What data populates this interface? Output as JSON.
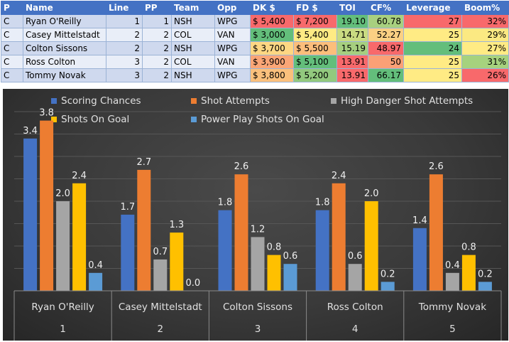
{
  "table": {
    "headers": [
      "P",
      "Name",
      "Line",
      "PP",
      "Team",
      "Opp",
      "DK $",
      "FD $",
      "TOI",
      "CF%",
      "Leverage",
      "Boom%"
    ],
    "rows": [
      [
        "C",
        "Ryan O'Reilly",
        "1",
        "1",
        "NSH",
        "WPG",
        "$ 5,400",
        "$ 7,200",
        "19.10",
        "60.78",
        "27",
        "32%"
      ],
      [
        "C",
        "Casey Mittelstadt",
        "2",
        "2",
        "COL",
        "VAN",
        "$ 3,000",
        "$ 5,400",
        "14.71",
        "52.27",
        "25",
        "29%"
      ],
      [
        "C",
        "Colton Sissons",
        "2",
        "2",
        "NSH",
        "WPG",
        "$ 3,700",
        "$ 5,500",
        "15.19",
        "48.97",
        "24",
        "27%"
      ],
      [
        "C",
        "Ross Colton",
        "3",
        "2",
        "COL",
        "VAN",
        "$ 3,900",
        "$ 5,100",
        "13.91",
        "50",
        "25",
        "31%"
      ],
      [
        "C",
        "Tommy Novak",
        "3",
        "2",
        "NSH",
        "WPG",
        "$ 3,800",
        "$ 5,200",
        "13.91",
        "66.17",
        "25",
        "26%"
      ]
    ],
    "cell_colors": [
      [
        "",
        "",
        "",
        "",
        "",
        "",
        "#f8696b",
        "#f8696b",
        "#63be7b",
        "#a8d07f",
        "#f8696b",
        "#f8696b"
      ],
      [
        "",
        "",
        "",
        "",
        "",
        "",
        "#63be7b",
        "#ffeb84",
        "#c9db81",
        "#fbd083",
        "#ffeb84",
        "#fbe982"
      ],
      [
        "",
        "",
        "",
        "",
        "",
        "",
        "#fdd783",
        "#fcbe7b",
        "#a6cf7f",
        "#f8696b",
        "#63be7b",
        "#ffeb84"
      ],
      [
        "",
        "",
        "",
        "",
        "",
        "",
        "#fba677",
        "#63be7b",
        "#f8696b",
        "#fba076",
        "#ffeb84",
        "#a6d27e"
      ],
      [
        "",
        "",
        "",
        "",
        "",
        "",
        "#fbc07c",
        "#92c97e",
        "#f8696b",
        "#63be7b",
        "#ffeb84",
        "#f8696b"
      ]
    ]
  },
  "chart_data": {
    "type": "bar",
    "categories": [
      "Ryan O'Reilly",
      "Casey Mittelstadt",
      "Colton Sissons",
      "Ross Colton",
      "Tommy Novak"
    ],
    "category_index": [
      "1",
      "2",
      "3",
      "4",
      "5"
    ],
    "series": [
      {
        "name": "Scoring Chances",
        "color": "#4472c4",
        "values": [
          3.4,
          1.7,
          1.8,
          1.8,
          1.4
        ]
      },
      {
        "name": "Shot Attempts",
        "color": "#ed7d31",
        "values": [
          3.8,
          2.7,
          2.6,
          2.4,
          2.6
        ]
      },
      {
        "name": "High Danger Shot Attempts",
        "color": "#a5a5a5",
        "values": [
          2.0,
          0.7,
          1.2,
          0.6,
          0.4
        ]
      },
      {
        "name": "Shots On Goal",
        "color": "#ffc000",
        "values": [
          2.4,
          1.3,
          0.8,
          2.0,
          0.8
        ]
      },
      {
        "name": "Power Play Shots On Goal",
        "color": "#5b9bd5",
        "values": [
          0.4,
          0.0,
          0.6,
          0.2,
          0.2
        ]
      }
    ],
    "value_labels": [
      [
        "3.4",
        "1.7",
        "1.8",
        "1.8",
        "1.4"
      ],
      [
        "3.8",
        "2.7",
        "2.6",
        "2.4",
        "2.6"
      ],
      [
        "2.0",
        "0.7",
        "1.2",
        "0.6",
        "0.4"
      ],
      [
        "2.4",
        "1.3",
        "0.8",
        "2.0",
        "0.8"
      ],
      [
        "0.4",
        "0.0",
        "0.6",
        "0.2",
        "0.2"
      ]
    ],
    "ylim": [
      0,
      4
    ],
    "legend_position": "top",
    "grid": true,
    "data_labels": true
  }
}
